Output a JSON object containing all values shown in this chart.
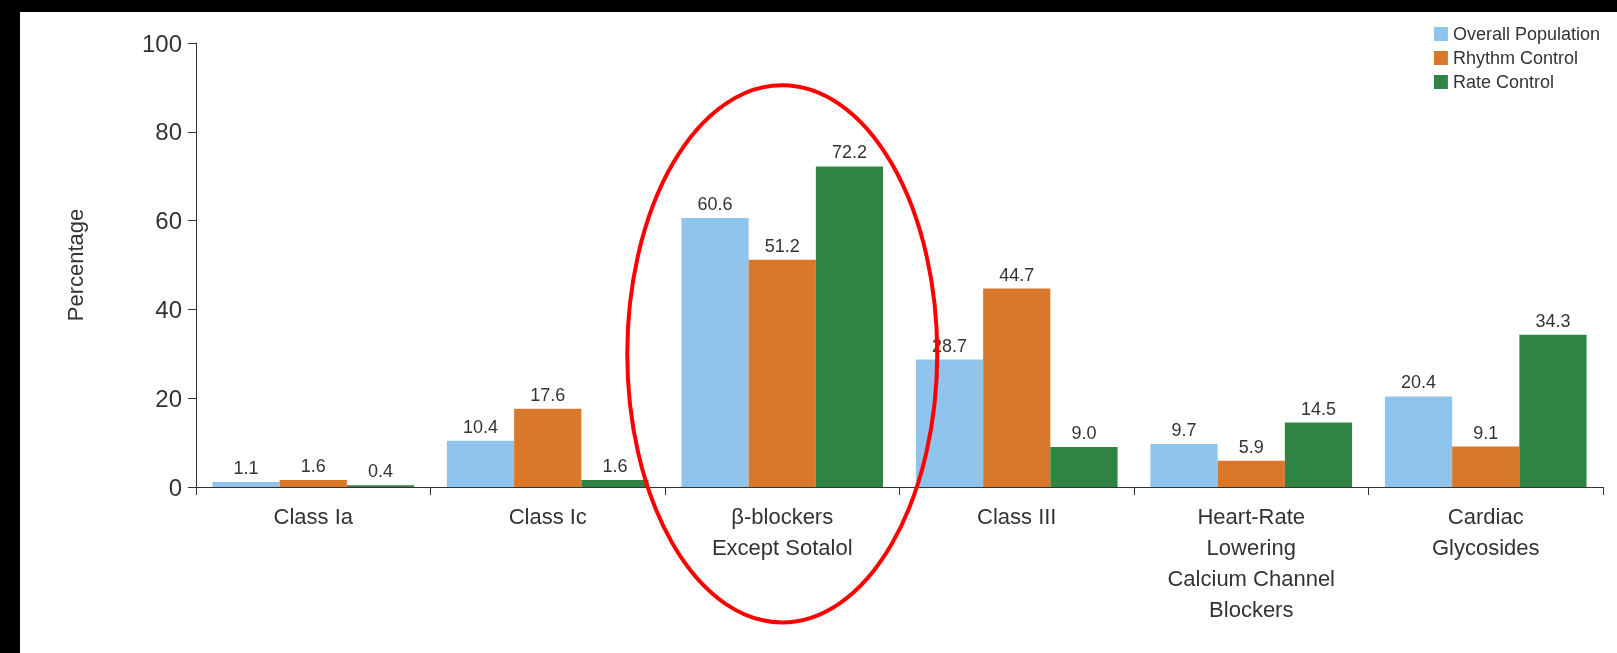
{
  "chart_data": {
    "type": "bar",
    "ylabel": "Percentage",
    "categories": [
      "Class Ia",
      "Class Ic",
      "β-blockers\nExcept Sotalol",
      "Class III",
      "Heart-Rate\nLowering\nCalcium Channel\nBlockers",
      "Cardiac\nGlycosides"
    ],
    "series": [
      {
        "name": "Overall Population",
        "color": "#8fc4ec",
        "values": [
          1.1,
          10.4,
          60.6,
          28.7,
          9.7,
          20.4
        ],
        "value_labels": [
          "1.1",
          "10.4",
          "60.6",
          "28.7",
          "9.7",
          "20.4"
        ]
      },
      {
        "name": "Rhythm Control",
        "color": "#d9772b",
        "values": [
          1.6,
          17.6,
          51.2,
          44.7,
          5.9,
          9.1
        ],
        "value_labels": [
          "1.6",
          "17.6",
          "51.2",
          "44.7",
          "5.9",
          "9.1"
        ]
      },
      {
        "name": "Rate Control",
        "color": "#2f8443",
        "values": [
          0.4,
          1.6,
          72.2,
          9.0,
          14.5,
          34.3
        ],
        "value_labels": [
          "0.4",
          "1.6",
          "72.2",
          "9.0",
          "14.5",
          "34.3"
        ]
      }
    ],
    "ylim": [
      0,
      100
    ],
    "yticks": [
      0,
      20,
      40,
      60,
      80,
      100
    ],
    "grid": false,
    "legend": "top right"
  }
}
